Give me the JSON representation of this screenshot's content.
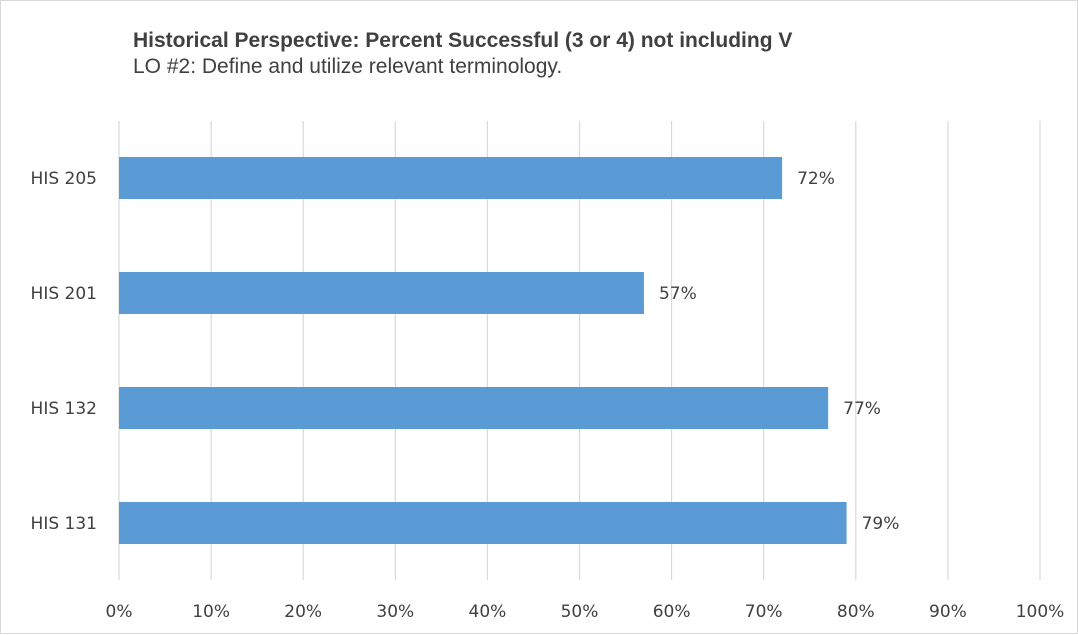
{
  "chart_data": {
    "type": "bar",
    "orientation": "horizontal",
    "title": "Historical Perspective:  Percent Successful (3 or 4) not including V",
    "subtitle": "LO #2:  Define and utilize relevant terminology.",
    "categories": [
      "HIS 205",
      "HIS 201",
      "HIS 132",
      "HIS 131"
    ],
    "values": [
      72,
      57,
      77,
      79
    ],
    "data_labels": [
      "72%",
      "57%",
      "77%",
      "79%"
    ],
    "xlim": [
      0,
      100
    ],
    "x_ticks": [
      0,
      10,
      20,
      30,
      40,
      50,
      60,
      70,
      80,
      90,
      100
    ],
    "x_tick_labels": [
      "0%",
      "10%",
      "20%",
      "30%",
      "40%",
      "50%",
      "60%",
      "70%",
      "80%",
      "90%",
      "100%"
    ],
    "grid": "vertical",
    "legend": "none",
    "colors": {
      "bar": "#5b9bd5",
      "grid": "#d9d9d9",
      "text": "#404040"
    }
  }
}
